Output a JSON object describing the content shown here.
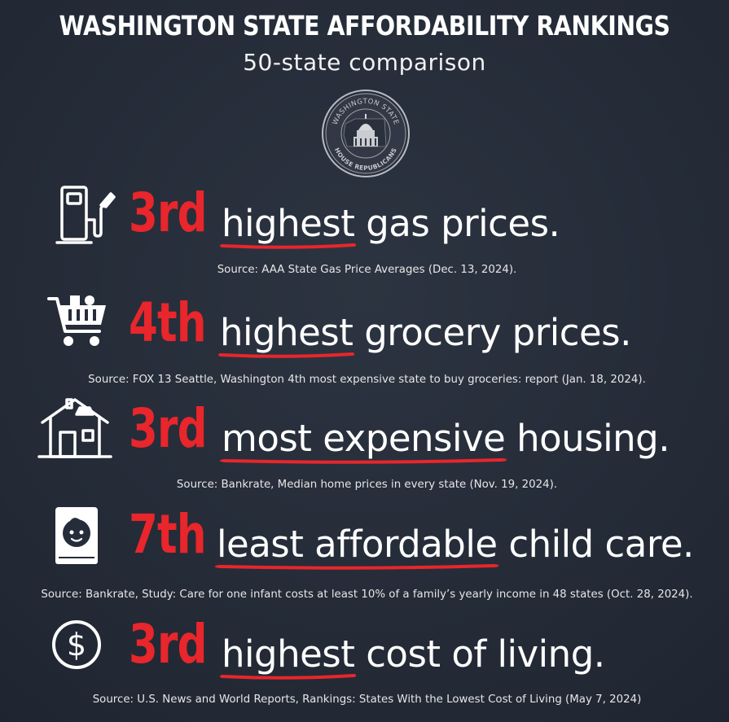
{
  "title": "WASHINGTON STATE AFFORDABILITY RANKINGS",
  "subtitle": "50-state comparison",
  "seal": {
    "top_text": "WASHINGTON STATE",
    "bottom_text": "HOUSE REPUBLICANS"
  },
  "colors": {
    "background": "#262d3a",
    "accent_red": "#e8262b",
    "text": "#ffffff"
  },
  "rankings": [
    {
      "icon": "gas-pump-icon",
      "rank": "3rd",
      "highlight": "highest",
      "rest": " gas prices.",
      "source": "Source: AAA State Gas Price Averages (Dec. 13, 2024)."
    },
    {
      "icon": "shopping-cart-icon",
      "rank": "4th",
      "highlight": "highest",
      "rest": " grocery prices.",
      "source": "Source: FOX 13 Seattle, Washington 4th most expensive state to buy groceries: report (Jan. 18, 2024)."
    },
    {
      "icon": "house-icon",
      "rank": "3rd",
      "highlight": "most expensive",
      "rest": " housing.",
      "source": "Source: Bankrate, Median home prices in every state (Nov. 19, 2024)."
    },
    {
      "icon": "baby-book-icon",
      "rank": "7th",
      "highlight": "least affordable",
      "rest": " child care.",
      "source": "Source: Bankrate, Study: Care for one infant costs at least 10% of a family’s yearly income in 48 states (Oct. 28, 2024)."
    },
    {
      "icon": "dollar-circle-icon",
      "rank": "3rd",
      "highlight": "highest",
      "rest": " cost of living.",
      "source": "Source: U.S. News and World Reports, Rankings: States With the Lowest Cost of Living (May 7, 2024)"
    }
  ]
}
